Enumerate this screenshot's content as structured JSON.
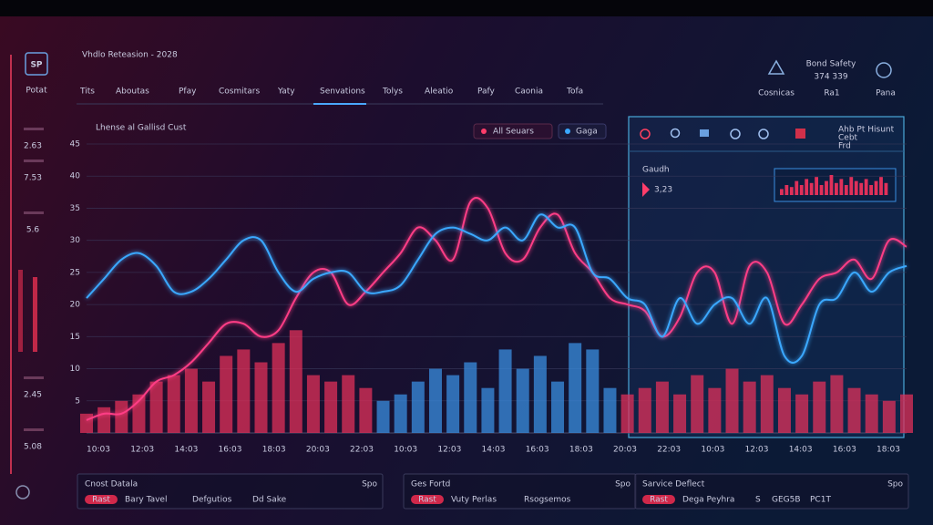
{
  "sidebar": {
    "logo": "SP",
    "label": "Potat",
    "stats": [
      "2.63",
      "7.53",
      "5.6",
      "2.45",
      "5.08"
    ]
  },
  "header": {
    "title": "Vhdlo Reteasion - 2028",
    "tabs": [
      "Tits",
      "Aboutas",
      "Pfay",
      "Cosmitars",
      "Yaty",
      "Senvations",
      "Tolys",
      "Aleatio",
      "Pafy",
      "Caonia",
      "Tofa"
    ],
    "status_label": "Bond Safety",
    "status_value": "374 339",
    "actions": [
      "Cosnicas",
      "Ra1",
      "Pana"
    ]
  },
  "chart_panel": {
    "title": "Lhense al Gallisd Cust",
    "buttons": [
      "All Seuars",
      "Gaga"
    ]
  },
  "chart_data": {
    "type": "line",
    "x_labels": [
      "10:03",
      "12:03",
      "14:03",
      "16:03",
      "18:03",
      "20:03",
      "22:03",
      "10:03",
      "12:03",
      "14:03",
      "16:03",
      "18:03",
      "20:03",
      "22:03",
      "10:03",
      "12:03",
      "14:03",
      "16:03",
      "18:03"
    ],
    "ylim": [
      0,
      45
    ],
    "yticks": [
      5,
      10,
      15,
      20,
      25,
      30,
      35,
      40,
      45
    ],
    "grid": true,
    "series": [
      {
        "color": "#ff3d86",
        "values": [
          2,
          3,
          3,
          5,
          8,
          9,
          11,
          14,
          17,
          17,
          15,
          16,
          21,
          25,
          25,
          20,
          22,
          25,
          28,
          32,
          30,
          27,
          36,
          35,
          28,
          27,
          32,
          34,
          28,
          25,
          21,
          20,
          19,
          15,
          18,
          25,
          25,
          17,
          26,
          25,
          17,
          20,
          24,
          25,
          27,
          24,
          30,
          29
        ]
      },
      {
        "color": "#3aa8ff",
        "values": [
          21,
          24,
          27,
          28,
          26,
          22,
          22,
          24,
          27,
          30,
          30,
          25,
          22,
          24,
          25,
          25,
          22,
          22,
          23,
          27,
          31,
          32,
          31,
          30,
          32,
          30,
          34,
          32,
          32,
          25,
          24,
          21,
          20,
          15,
          21,
          17,
          20,
          21,
          17,
          21,
          12,
          12,
          20,
          21,
          25,
          22,
          25,
          26
        ]
      }
    ],
    "bars": [
      {
        "color": "#e0305a",
        "values": [
          3,
          4,
          5,
          6,
          8,
          9,
          10,
          8,
          12,
          13,
          11,
          14,
          16,
          9,
          8,
          9,
          7,
          null,
          null,
          null,
          null,
          null,
          null,
          null,
          null,
          null,
          null,
          null,
          null,
          null,
          null,
          6,
          7,
          8,
          6,
          9,
          7,
          10,
          8,
          9,
          7,
          6,
          8,
          9,
          7,
          6,
          5,
          6
        ]
      },
      {
        "color": "#3a8ee0",
        "values": [
          null,
          null,
          null,
          null,
          null,
          null,
          null,
          null,
          null,
          null,
          null,
          null,
          null,
          null,
          null,
          null,
          null,
          5,
          6,
          8,
          10,
          9,
          11,
          7,
          13,
          10,
          12,
          8,
          14,
          13,
          7,
          null,
          null,
          null,
          null,
          null,
          null,
          null,
          null,
          null,
          null,
          null,
          null,
          null,
          null,
          null,
          null,
          null
        ]
      }
    ]
  },
  "detail_panel": {
    "legend": [
      "Ahb Pt Hisunt",
      "Cebt",
      "Frd"
    ],
    "metric_label": "Gaudh",
    "metric_value": "3,23",
    "sparkline": [
      3,
      5,
      4,
      7,
      5,
      8,
      6,
      9,
      5,
      7,
      10,
      6,
      8,
      5,
      9,
      7,
      6,
      8,
      5,
      7,
      9,
      6
    ]
  },
  "cards": [
    {
      "title": "Cnost Datala",
      "tag": "Spo",
      "pill": "Rast",
      "items": [
        "Bary Tavel",
        "Defgutios",
        "Dd Sake"
      ]
    },
    {
      "title": "Ges Fortd",
      "tag": "Spo",
      "pill": "Rast",
      "items": [
        "Vuty Perlas",
        "Rsogsemos"
      ]
    },
    {
      "title": "Sarvice Deflect",
      "tag": "Spo",
      "pill": "Rast",
      "items": [
        "Dega Peyhra",
        "S",
        "GEG5B",
        "PC1T"
      ]
    }
  ]
}
